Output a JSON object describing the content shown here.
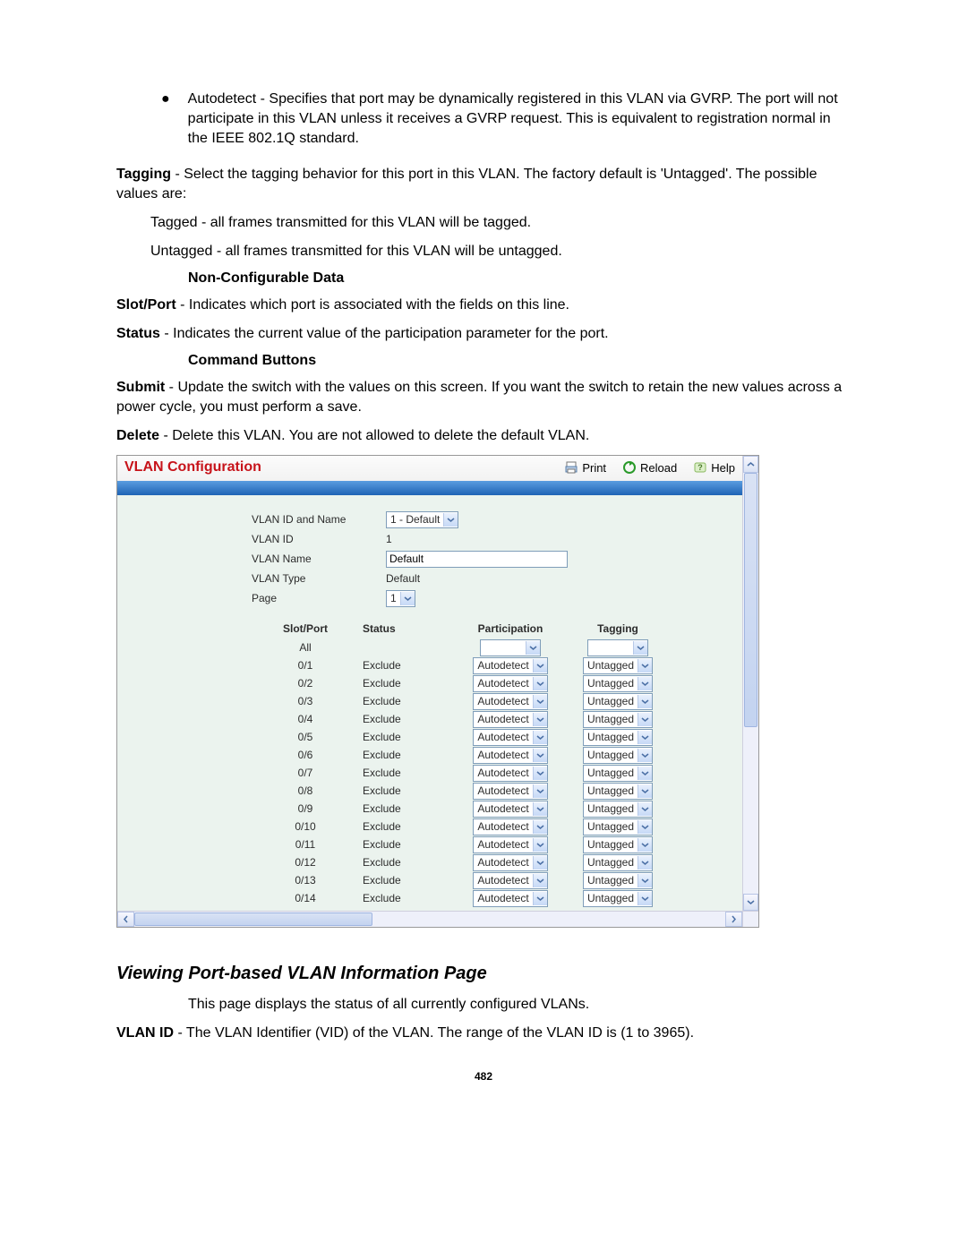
{
  "doc": {
    "bullet_label": "Autodetect",
    "bullet_text": " - Specifies that port may be dynamically registered in this VLAN via GVRP. The port will not participate in this VLAN unless it receives a GVRP request. This is equivalent to registration normal in the IEEE 802.1Q standard.",
    "tagging_label": "Tagging",
    "tagging_text": " - Select the tagging behavior for this port in this VLAN. The factory default is 'Untagged'. The possible values are:",
    "tagged_line": "Tagged - all frames transmitted for this VLAN will be tagged.",
    "untagged_line": "Untagged - all frames transmitted for this VLAN will be untagged.",
    "noncfg_heading": "Non-Configurable Data",
    "slotport_label": "Slot/Port",
    "slotport_text": " - Indicates which port is associated with the fields on this line.",
    "status_label": "Status",
    "status_text": " - Indicates the current value of the participation parameter for the port.",
    "cmdbtn_heading": "Command Buttons",
    "submit_label": "Submit",
    "submit_text": " - Update the switch with the values on this screen. If you want the switch to retain the new values across a power cycle, you must perform a save.",
    "delete_label": "Delete",
    "delete_text": " - Delete this VLAN. You are not allowed to delete the default VLAN.",
    "viewing_heading": "Viewing Port-based VLAN Information Page",
    "viewing_desc": "This page displays the status of all currently configured VLANs.",
    "vlanid_label": "VLAN ID",
    "vlanid_text": " - The VLAN Identifier (VID) of the VLAN. The range of the VLAN ID is (1 to 3965).",
    "page_number": "482"
  },
  "panel": {
    "title": "VLAN Configuration",
    "actions": {
      "print": "Print",
      "reload": "Reload",
      "help": "Help"
    },
    "form": {
      "vlan_id_name_label": "VLAN ID and Name",
      "vlan_id_name_value": "1 - Default",
      "vlan_id_label": "VLAN ID",
      "vlan_id_value": "1",
      "vlan_name_label": "VLAN Name",
      "vlan_name_value": "Default",
      "vlan_type_label": "VLAN Type",
      "vlan_type_value": "Default",
      "page_label": "Page",
      "page_value": "1"
    },
    "table": {
      "headers": {
        "slot": "Slot/Port",
        "status": "Status",
        "part": "Participation",
        "tag": "Tagging"
      },
      "all_label": "All",
      "row_status": "Exclude",
      "row_part": "Autodetect",
      "row_tag": "Untagged",
      "ports": [
        "0/1",
        "0/2",
        "0/3",
        "0/4",
        "0/5",
        "0/6",
        "0/7",
        "0/8",
        "0/9",
        "0/10",
        "0/11",
        "0/12",
        "0/13",
        "0/14"
      ]
    },
    "colors": {
      "title_color": "#c7131a",
      "band_top": "#5a9de0",
      "band_bottom": "#1e63b5",
      "body_bg": "#ebf3ee",
      "select_border": "#7f9db9"
    }
  }
}
